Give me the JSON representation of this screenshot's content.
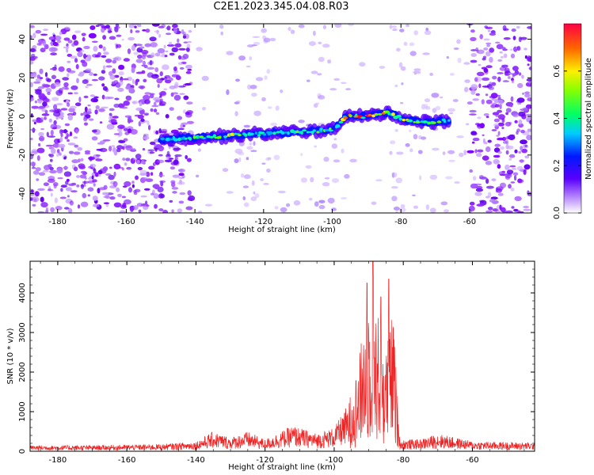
{
  "title": "C2E1.2023.345.04.08.R03",
  "colors": {
    "snr_line": "#ee2222",
    "spectrogram_low": "#7a00ff"
  },
  "chart_data": [
    {
      "type": "heatmap",
      "xlabel": "Height of straight line (km)",
      "ylabel": "Frequency (Hz)",
      "xlim": [
        -188,
        -42
      ],
      "ylim": [
        -50,
        48
      ],
      "xticks": [
        -180,
        -160,
        -140,
        -120,
        -100,
        -80,
        -60
      ],
      "yticks": [
        -40,
        -20,
        0,
        20,
        40
      ],
      "colorbar": {
        "label": "Normalized spectral amplitude",
        "range": [
          0,
          0.8
        ],
        "ticks": [
          "0.0",
          "0.2",
          "0.4",
          "0.6"
        ],
        "tick_values": [
          0.0,
          0.2,
          0.4,
          0.6
        ],
        "colormap": "rainbow"
      },
      "signal_trace": {
        "description_points": [
          {
            "x": -150,
            "y": -12,
            "amp": 0.3
          },
          {
            "x": -140,
            "y": -11,
            "amp": 0.45
          },
          {
            "x": -130,
            "y": -10,
            "amp": 0.55
          },
          {
            "x": -120,
            "y": -9,
            "amp": 0.4
          },
          {
            "x": -110,
            "y": -8,
            "amp": 0.5
          },
          {
            "x": -100,
            "y": -7,
            "amp": 0.45
          },
          {
            "x": -96,
            "y": 0,
            "amp": 0.6
          },
          {
            "x": -90,
            "y": 0,
            "amp": 0.8
          },
          {
            "x": -84,
            "y": 2,
            "amp": 0.6
          },
          {
            "x": -78,
            "y": -2,
            "amp": 0.5
          },
          {
            "x": -72,
            "y": -3,
            "amp": 0.55
          },
          {
            "x": -66,
            "y": -2,
            "amp": 0.35
          }
        ]
      }
    },
    {
      "type": "line",
      "xlabel": "Height of straight line (km)",
      "ylabel": "SNR (10 * v/v)",
      "xlim": [
        -188,
        -42
      ],
      "ylim": [
        0,
        4800
      ],
      "xticks": [
        -180,
        -160,
        -140,
        -120,
        -100,
        -80,
        -60
      ],
      "yticks": [
        0,
        1000,
        2000,
        3000,
        4000
      ],
      "envelope": [
        {
          "x": -188,
          "y": 150
        },
        {
          "x": -170,
          "y": 150
        },
        {
          "x": -150,
          "y": 180
        },
        {
          "x": -140,
          "y": 250
        },
        {
          "x": -135,
          "y": 500
        },
        {
          "x": -130,
          "y": 350
        },
        {
          "x": -125,
          "y": 500
        },
        {
          "x": -120,
          "y": 300
        },
        {
          "x": -112,
          "y": 650
        },
        {
          "x": -105,
          "y": 450
        },
        {
          "x": -100,
          "y": 600
        },
        {
          "x": -96,
          "y": 1200
        },
        {
          "x": -93,
          "y": 2200
        },
        {
          "x": -91,
          "y": 3600
        },
        {
          "x": -89,
          "y": 4600
        },
        {
          "x": -87,
          "y": 3300
        },
        {
          "x": -85,
          "y": 2600
        },
        {
          "x": -83,
          "y": 3600
        },
        {
          "x": -81,
          "y": 300
        },
        {
          "x": -75,
          "y": 300
        },
        {
          "x": -70,
          "y": 450
        },
        {
          "x": -60,
          "y": 250
        },
        {
          "x": -42,
          "y": 220
        }
      ],
      "peaks": [
        {
          "x": -90.5,
          "y": 4250
        },
        {
          "x": -88.8,
          "y": 4800
        },
        {
          "x": -86.5,
          "y": 3900
        },
        {
          "x": -84.2,
          "y": 4350
        }
      ]
    }
  ]
}
